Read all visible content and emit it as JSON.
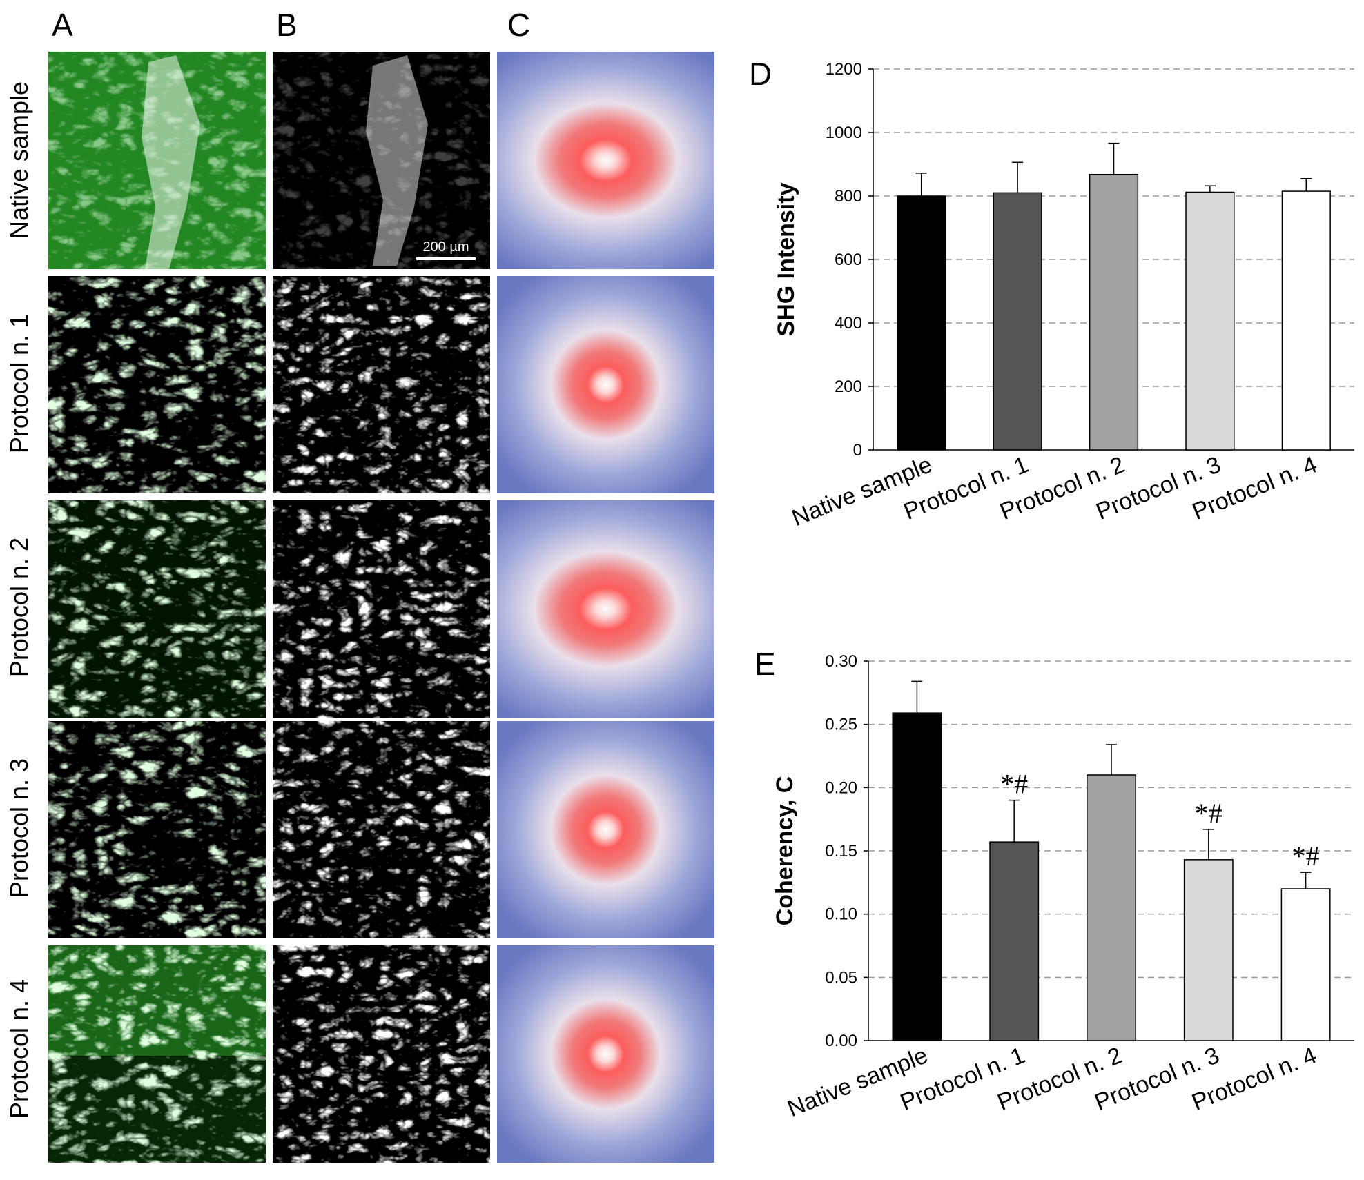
{
  "panel_letters": {
    "a": "A",
    "b": "B",
    "c": "C",
    "d": "D",
    "e": "E"
  },
  "rows": [
    "Native sample",
    "Protocol n. 1",
    "Protocol n. 2",
    "Protocol n. 3",
    "Protocol n. 4"
  ],
  "scale_bar_label": "200 µm",
  "colors": {
    "merged_tissue": "#1f8a1f",
    "shg_fibers": "#e6e6e6",
    "fft_center": "#ff2a2a",
    "fft_edge": "#3a4fb0",
    "bars": [
      "#000000",
      "#555555",
      "#a3a3a3",
      "#d9d9d9",
      "#ffffff"
    ]
  },
  "chart_data": [
    {
      "type": "bar",
      "panel": "D",
      "categories": [
        "Native sample",
        "Protocol n. 1",
        "Protocol n. 2",
        "Protocol n. 3",
        "Protocol n. 4"
      ],
      "values": [
        800,
        810,
        868,
        812,
        815
      ],
      "errors": [
        72,
        96,
        98,
        20,
        40
      ],
      "annotations": [
        "",
        "",
        "",
        "",
        ""
      ],
      "ylabel": "SHG Intensity",
      "ylim": [
        0,
        1200
      ],
      "yticks": [
        0,
        200,
        400,
        600,
        800,
        1000,
        1200
      ],
      "ytick_labels": [
        "0",
        "200",
        "400",
        "600",
        "800",
        "1000",
        "1200"
      ],
      "grid": "dashed horizontal"
    },
    {
      "type": "bar",
      "panel": "E",
      "categories": [
        "Native sample",
        "Protocol n. 1",
        "Protocol n. 2",
        "Protocol n. 3",
        "Protocol n. 4"
      ],
      "values": [
        0.259,
        0.157,
        0.21,
        0.143,
        0.12
      ],
      "errors": [
        0.025,
        0.033,
        0.024,
        0.024,
        0.013
      ],
      "annotations": [
        "",
        "*#",
        "",
        "*#",
        "*#"
      ],
      "ylabel": "Coherency, C",
      "ylim": [
        0,
        0.3
      ],
      "yticks": [
        0,
        0.05,
        0.1,
        0.15,
        0.2,
        0.25,
        0.3
      ],
      "ytick_labels": [
        "0.00",
        "0.05",
        "0.10",
        "0.15",
        "0.20",
        "0.25",
        "0.30"
      ],
      "grid": "dashed horizontal"
    }
  ]
}
